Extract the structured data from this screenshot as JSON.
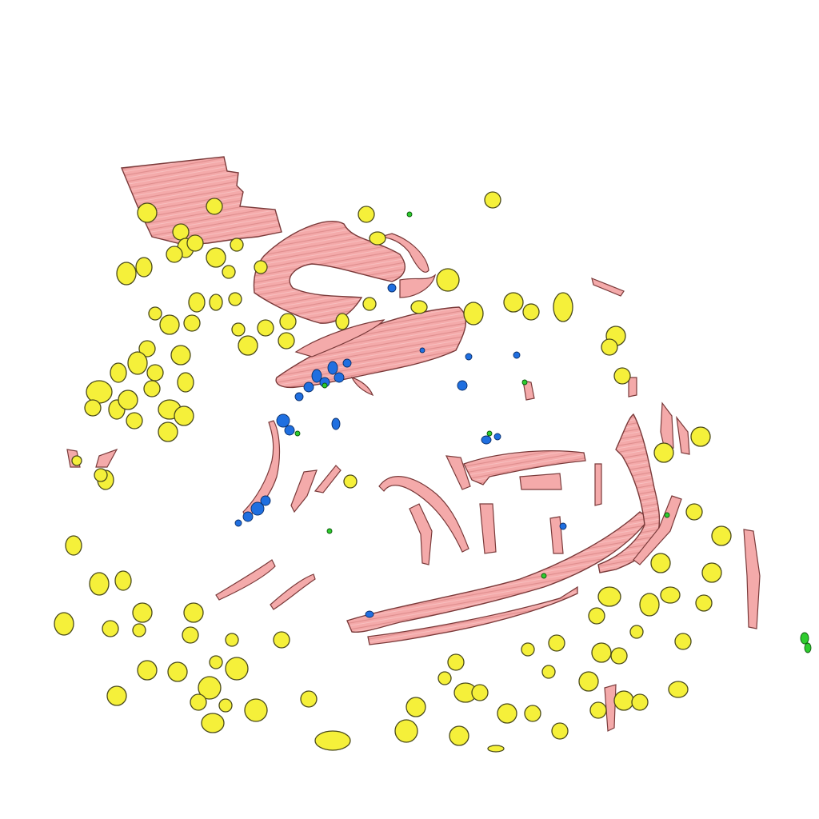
{
  "scene": {
    "background": "#ffffff",
    "categories": [
      {
        "key": "yellow",
        "fill": "#f5f03a",
        "stroke": "#4a4a1a"
      },
      {
        "key": "pink",
        "fill": "#f4aaaa",
        "stroke": "#7a3a3a"
      },
      {
        "key": "blue",
        "fill": "#1f6fe0",
        "stroke": "#0b2f6a"
      },
      {
        "key": "green",
        "fill": "#2ecc2e",
        "stroke": "#0f5a0f"
      }
    ]
  }
}
